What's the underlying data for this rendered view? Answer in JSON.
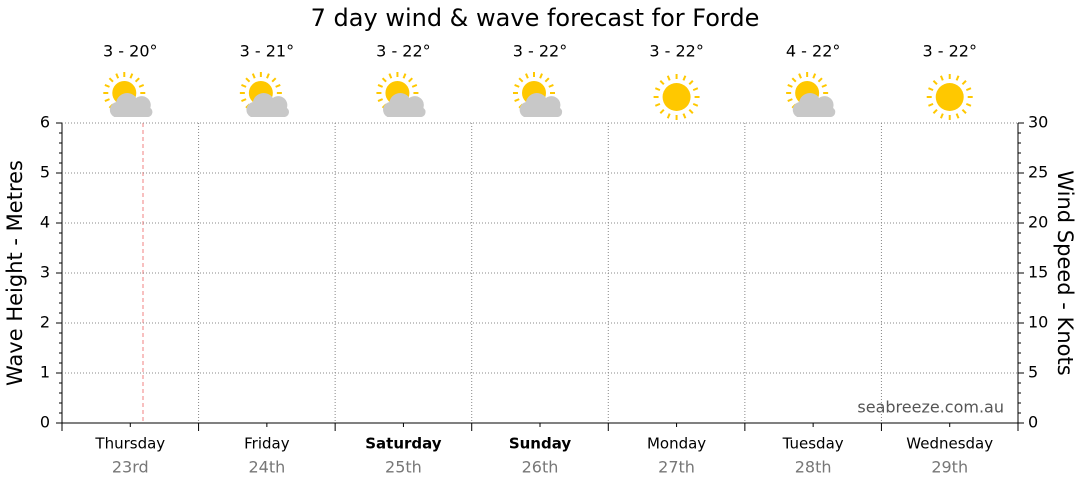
{
  "chart_data": {
    "type": "line",
    "title": "7 day wind & wave forecast for Forde",
    "categories": [
      "Thursday",
      "Friday",
      "Saturday",
      "Sunday",
      "Monday",
      "Tuesday",
      "Wednesday"
    ],
    "dates": [
      "23rd",
      "24th",
      "25th",
      "26th",
      "27th",
      "28th",
      "29th"
    ],
    "bold": [
      false,
      false,
      true,
      true,
      false,
      false,
      false
    ],
    "temperatures": [
      "3 - 20°",
      "3 - 21°",
      "3 - 22°",
      "3 - 22°",
      "3 - 22°",
      "4 - 22°",
      "3 - 22°"
    ],
    "sunny": [
      false,
      false,
      false,
      false,
      true,
      false,
      true
    ],
    "ylabel": "Wave Height - Metres",
    "y2label": "Wind Speed - Knots",
    "ylim": [
      0,
      6
    ],
    "yticks": [
      0,
      1,
      2,
      3,
      4,
      5,
      6
    ],
    "y2lim": [
      0,
      30
    ],
    "y2ticks": [
      0,
      5,
      10,
      15,
      20,
      25,
      30
    ],
    "grid": true,
    "watermark": "seabreeze.com.au",
    "series": []
  }
}
